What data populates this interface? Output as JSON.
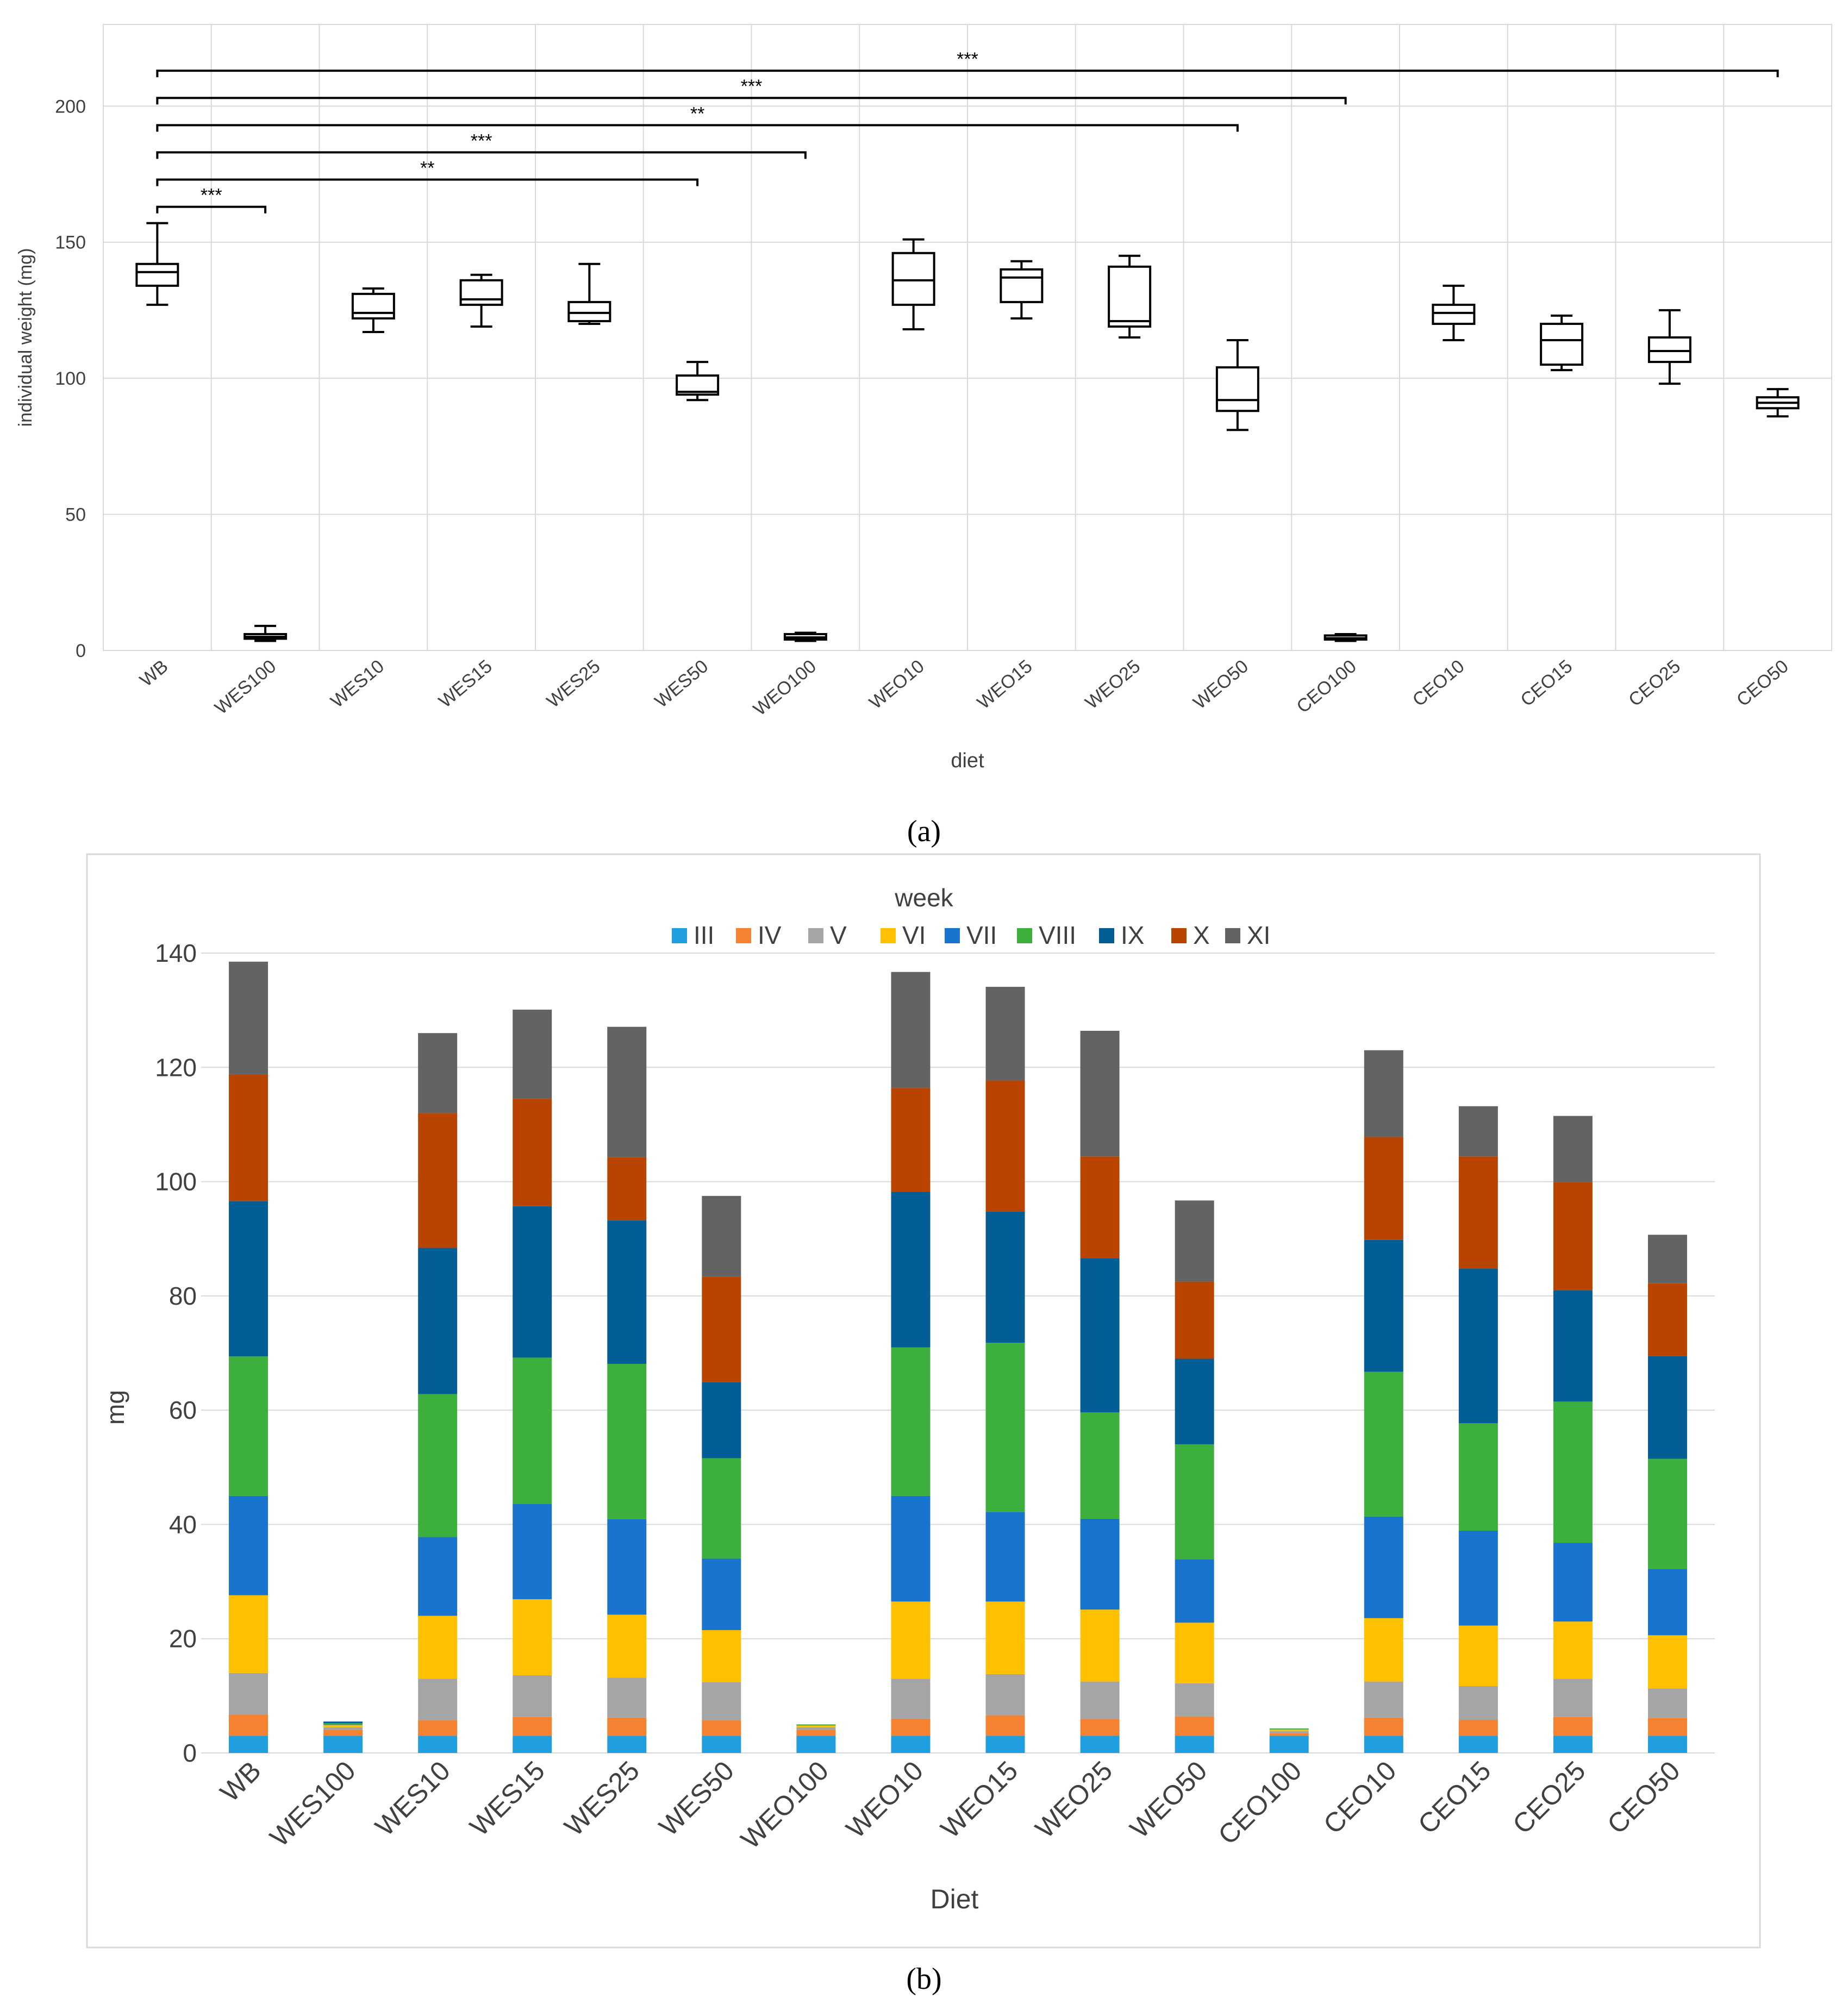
{
  "chart_data": [
    {
      "type": "box",
      "panel_label": "(a)",
      "title": "",
      "xlabel": "diet",
      "ylabel": "individual weight (mg)",
      "ylim": [
        0,
        230
      ],
      "yticks": [
        0,
        50,
        100,
        150,
        200
      ],
      "grid": true,
      "categories": [
        "WB",
        "WES100",
        "WES10",
        "WES15",
        "WES25",
        "WES50",
        "WEO100",
        "WEO10",
        "WEO15",
        "WEO25",
        "WEO50",
        "CEO100",
        "CEO10",
        "CEO15",
        "CEO25",
        "CEO50"
      ],
      "boxes": [
        {
          "min": 127,
          "q1": 134,
          "median": 139,
          "q3": 142,
          "max": 157
        },
        {
          "min": 3.5,
          "q1": 4.3,
          "median": 5,
          "q3": 6,
          "max": 9
        },
        {
          "min": 117,
          "q1": 122,
          "median": 124,
          "q3": 131,
          "max": 133
        },
        {
          "min": 119,
          "q1": 127,
          "median": 129,
          "q3": 136,
          "max": 138
        },
        {
          "min": 120,
          "q1": 121,
          "median": 124,
          "q3": 128,
          "max": 142
        },
        {
          "min": 92,
          "q1": 94,
          "median": 95,
          "q3": 101,
          "max": 106
        },
        {
          "min": 3.5,
          "q1": 4,
          "median": 4.8,
          "q3": 6,
          "max": 6.5
        },
        {
          "min": 118,
          "q1": 127,
          "median": 136,
          "q3": 146,
          "max": 151
        },
        {
          "min": 122,
          "q1": 128,
          "median": 137,
          "q3": 140,
          "max": 143
        },
        {
          "min": 115,
          "q1": 119,
          "median": 121,
          "q3": 141,
          "max": 145
        },
        {
          "min": 81,
          "q1": 88,
          "median": 92,
          "q3": 104,
          "max": 114
        },
        {
          "min": 3.5,
          "q1": 4,
          "median": 4.5,
          "q3": 5.5,
          "max": 6
        },
        {
          "min": 114,
          "q1": 120,
          "median": 124,
          "q3": 127,
          "max": 134
        },
        {
          "min": 103,
          "q1": 105,
          "median": 114,
          "q3": 120,
          "max": 123
        },
        {
          "min": 98,
          "q1": 106,
          "median": 110,
          "q3": 115,
          "max": 125
        },
        {
          "min": 86,
          "q1": 89,
          "median": 91,
          "q3": 93,
          "max": 96
        }
      ],
      "significance": [
        {
          "from": "WB",
          "to": "WES100",
          "y": 163,
          "label": "***"
        },
        {
          "from": "WB",
          "to": "WES50",
          "y": 173,
          "label": "**"
        },
        {
          "from": "WB",
          "to": "WEO100",
          "y": 183,
          "label": "***"
        },
        {
          "from": "WB",
          "to": "WEO50",
          "y": 193,
          "label": "**"
        },
        {
          "from": "WB",
          "to": "CEO100",
          "y": 203,
          "label": "***"
        },
        {
          "from": "WB",
          "to": "CEO50",
          "y": 213,
          "label": "***"
        }
      ]
    },
    {
      "type": "stacked-bar",
      "panel_label": "(b)",
      "title": "",
      "xlabel": "Diet",
      "ylabel": "mg",
      "ylim": [
        0,
        140
      ],
      "yticks": [
        0,
        20,
        40,
        60,
        80,
        100,
        120,
        140
      ],
      "grid": true,
      "legend_title": "week",
      "legend_position": "top",
      "categories": [
        "WB",
        "WES100",
        "WES10",
        "WES15",
        "WES25",
        "WES50",
        "WEO100",
        "WEO10",
        "WEO15",
        "WEO25",
        "WEO50",
        "CEO100",
        "CEO10",
        "CEO15",
        "CEO25",
        "CEO50"
      ],
      "series": [
        {
          "name": "III",
          "color": "#1f9fdf",
          "values": [
            3.0,
            3.0,
            3.0,
            3.0,
            3.0,
            3.0,
            3.0,
            3.0,
            3.0,
            3.0,
            3.0,
            3.0,
            3.0,
            3.0,
            3.0,
            3.0
          ]
        },
        {
          "name": "IV",
          "color": "#f58231",
          "values": [
            3.7,
            1.0,
            2.7,
            3.3,
            3.2,
            2.7,
            1.0,
            3.0,
            3.6,
            2.9,
            3.4,
            0.5,
            3.2,
            2.8,
            3.3,
            3.1
          ]
        },
        {
          "name": "V",
          "color": "#a5a5a5",
          "values": [
            7.3,
            0.5,
            7.3,
            7.3,
            7.0,
            6.7,
            0.5,
            7.0,
            7.2,
            6.6,
            5.8,
            0.3,
            6.3,
            5.9,
            6.7,
            5.2
          ]
        },
        {
          "name": "VI",
          "color": "#ffc000",
          "values": [
            13.6,
            0.4,
            11.0,
            13.3,
            11.0,
            9.1,
            0.3,
            13.5,
            12.7,
            12.6,
            10.6,
            0.3,
            11.1,
            10.6,
            10.0,
            9.3
          ]
        },
        {
          "name": "VII",
          "color": "#1874cd",
          "values": [
            17.4,
            0.1,
            13.8,
            16.7,
            16.7,
            12.5,
            0,
            18.5,
            15.7,
            15.9,
            11.1,
            0,
            17.8,
            16.6,
            13.8,
            11.6
          ]
        },
        {
          "name": "VIII",
          "color": "#3daf3d",
          "values": [
            24.4,
            0.2,
            25.0,
            25.6,
            27.2,
            17.6,
            0.2,
            26.0,
            29.6,
            18.6,
            20.1,
            0.2,
            25.3,
            18.8,
            24.7,
            19.3
          ]
        },
        {
          "name": "IX",
          "color": "#045e96",
          "values": [
            27.2,
            0.3,
            25.6,
            26.5,
            25.1,
            13.3,
            0,
            27.2,
            23.0,
            27.0,
            15.0,
            0,
            23.1,
            27.1,
            19.5,
            18.0
          ]
        },
        {
          "name": "X",
          "color": "#b84400",
          "values": [
            22.2,
            0,
            23.6,
            18.8,
            11.1,
            18.5,
            0,
            18.2,
            22.9,
            17.8,
            13.5,
            0,
            18.0,
            19.6,
            18.9,
            12.7
          ]
        },
        {
          "name": "XI",
          "color": "#636363",
          "values": [
            19.7,
            0,
            14.0,
            15.6,
            22.8,
            14.1,
            0,
            20.3,
            16.4,
            22.0,
            14.2,
            0,
            15.2,
            8.8,
            11.6,
            8.5
          ]
        }
      ]
    }
  ]
}
